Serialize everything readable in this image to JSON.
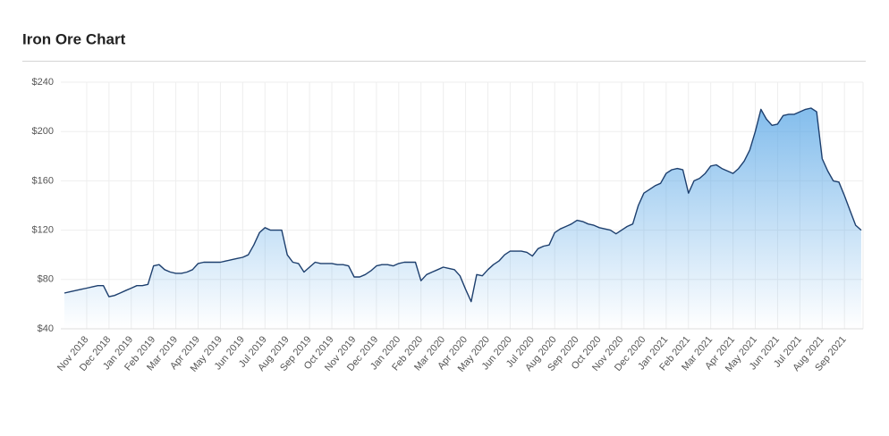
{
  "chart_data": {
    "type": "area_line",
    "title": "Iron Ore Chart",
    "categories": [
      null,
      null,
      null,
      null,
      "Nov 2018",
      null,
      null,
      null,
      "Dec 2018",
      null,
      null,
      null,
      "Jan 2019",
      null,
      null,
      null,
      "Feb 2019",
      null,
      null,
      null,
      "Mar 2019",
      null,
      null,
      null,
      "Apr 2019",
      null,
      null,
      null,
      "May 2019",
      null,
      null,
      null,
      "Jun 2019",
      null,
      null,
      null,
      "Jul 2019",
      null,
      null,
      null,
      "Aug 2019",
      null,
      null,
      null,
      "Sep 2019",
      null,
      null,
      null,
      "Oct 2019",
      null,
      null,
      null,
      "Nov 2019",
      null,
      null,
      null,
      "Dec 2019",
      null,
      null,
      null,
      "Jan 2020",
      null,
      null,
      null,
      "Feb 2020",
      null,
      null,
      null,
      "Mar 2020",
      null,
      null,
      null,
      "Apr 2020",
      null,
      null,
      null,
      "May 2020",
      null,
      null,
      null,
      "Jun 2020",
      null,
      null,
      null,
      "Jul 2020",
      null,
      null,
      null,
      "Aug 2020",
      null,
      null,
      null,
      "Sep 2020",
      null,
      null,
      null,
      "Oct 2020",
      null,
      null,
      null,
      "Nov 2020",
      null,
      null,
      null,
      "Dec 2020",
      null,
      null,
      null,
      "Jan 2021",
      null,
      null,
      null,
      "Feb 2021",
      null,
      null,
      null,
      "Mar 2021",
      null,
      null,
      null,
      "Apr 2021",
      null,
      null,
      null,
      "May 2021",
      null,
      null,
      null,
      "Jun 2021",
      null,
      null,
      null,
      "Jul 2021",
      null,
      null,
      null,
      "Aug 2021",
      null,
      null,
      null,
      "Sep 2021",
      null,
      null,
      null
    ],
    "series": [
      {
        "color": "#1d3f6e",
        "area_color": "#5aa7e6",
        "values": [
          69,
          70,
          71,
          72,
          73,
          74,
          75,
          75,
          66,
          67,
          69,
          71,
          73,
          75,
          75,
          76,
          91,
          92,
          88,
          86,
          85,
          85,
          86,
          88,
          93,
          94,
          94,
          94,
          94,
          95,
          96,
          97,
          98,
          100,
          108,
          118,
          122,
          120,
          120,
          120,
          100,
          94,
          93,
          86,
          90,
          94,
          93,
          93,
          93,
          92,
          92,
          91,
          82,
          82,
          84,
          87,
          91,
          92,
          92,
          91,
          93,
          94,
          94,
          94,
          79,
          84,
          86,
          88,
          90,
          89,
          88,
          83,
          72,
          62,
          84,
          83,
          88,
          92,
          95,
          100,
          103,
          103,
          103,
          102,
          99,
          105,
          107,
          108,
          118,
          121,
          123,
          125,
          128,
          127,
          125,
          124,
          122,
          121,
          120,
          117,
          120,
          123,
          125,
          140,
          150,
          153,
          156,
          158,
          166,
          169,
          170,
          169,
          150,
          160,
          162,
          166,
          172,
          173,
          170,
          168,
          166,
          170,
          176,
          185,
          200,
          218,
          210,
          205,
          206,
          213,
          214,
          214,
          216,
          218,
          219,
          216,
          178,
          168,
          160,
          159,
          148,
          136,
          124,
          120
        ]
      }
    ],
    "ylim": [
      40,
      240
    ],
    "yticks": [
      {
        "value": 40,
        "label": "$40"
      },
      {
        "value": 80,
        "label": "$80"
      },
      {
        "value": 120,
        "label": "$120"
      },
      {
        "value": 160,
        "label": "$160"
      },
      {
        "value": 200,
        "label": "$200"
      },
      {
        "value": 240,
        "label": "$240"
      }
    ],
    "grid": true
  }
}
